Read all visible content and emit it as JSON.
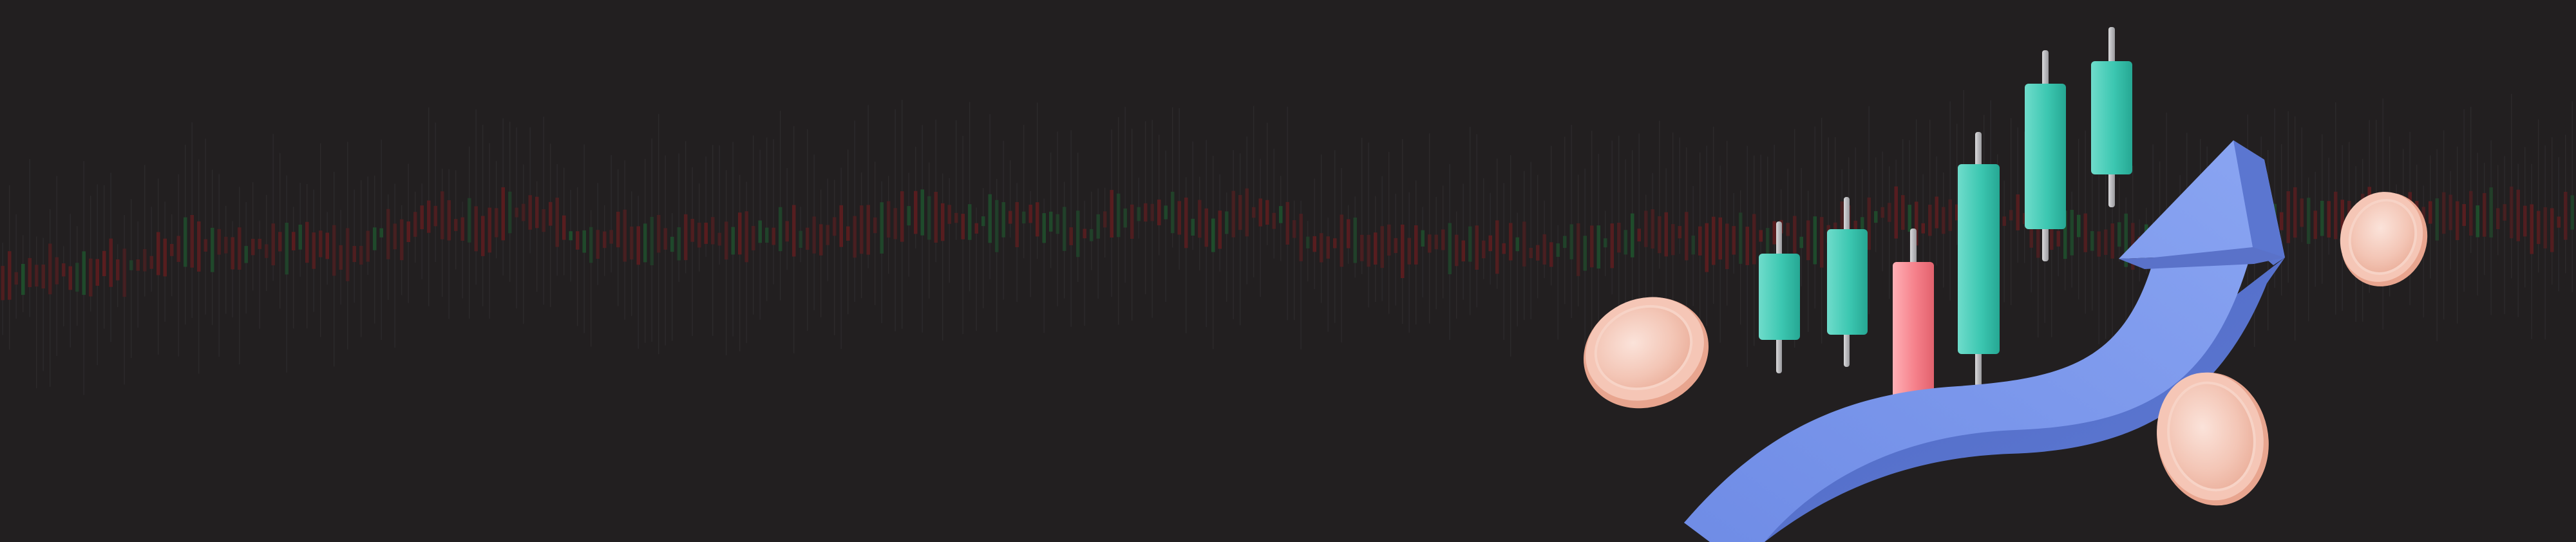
{
  "banner": {
    "background_color": "#221f20",
    "theme": "stock-market growth illustration"
  },
  "background_chart": {
    "icon": "candlestick-chart-texture",
    "up_color": "#1f4d2c",
    "down_color": "#5a1d1f",
    "wick_color": "#2c2a2b"
  },
  "foreground": {
    "candles": [
      {
        "icon": "candlestick-icon",
        "direction": "up",
        "color": "#3cc7b1"
      },
      {
        "icon": "candlestick-icon",
        "direction": "up",
        "color": "#3cc7b1"
      },
      {
        "icon": "candlestick-icon",
        "direction": "down",
        "color": "#f5808a"
      },
      {
        "icon": "candlestick-icon",
        "direction": "up",
        "color": "#3cc7b1"
      },
      {
        "icon": "candlestick-icon",
        "direction": "up",
        "color": "#3cc7b1"
      },
      {
        "icon": "candlestick-icon",
        "direction": "up",
        "color": "#3cc7b1"
      }
    ],
    "arrow": {
      "icon": "growth-arrow-icon",
      "color": "#7b97ec",
      "shade": "#5a72c9"
    },
    "coins": [
      {
        "icon": "coin-icon",
        "color": "#f5c6b6"
      },
      {
        "icon": "coin-icon",
        "color": "#f5c6b6"
      },
      {
        "icon": "coin-icon",
        "color": "#f5c6b6"
      }
    ]
  }
}
